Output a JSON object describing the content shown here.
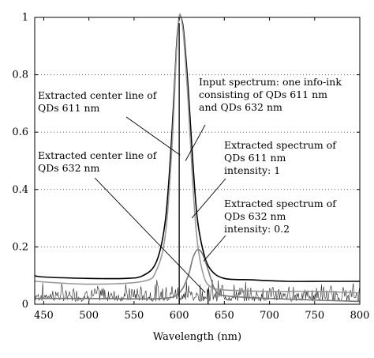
{
  "chart_data": {
    "type": "line",
    "title": "",
    "xlabel": "Wavelength (nm)",
    "ylabel": "",
    "xlim": [
      440,
      800
    ],
    "ylim": [
      0,
      1
    ],
    "grid": "dotted horizontal",
    "x_ticks": [
      "450",
      "500",
      "550",
      "600",
      "650",
      "700",
      "750",
      "800"
    ],
    "y_ticks": [
      "0",
      "0.2",
      "0.4",
      "0.6",
      "0.8",
      "1"
    ],
    "series": [
      {
        "color": "#000000",
        "x": [
          440,
          450,
          500,
          540,
          560,
          575,
          585,
          592,
          597,
          600,
          602,
          605,
          610,
          615,
          620,
          627,
          635,
          650,
          680,
          720,
          760,
          800
        ],
        "values": [
          0.1,
          0.095,
          0.09,
          0.09,
          0.1,
          0.15,
          0.3,
          0.6,
          0.9,
          1.0,
          1.0,
          0.95,
          0.75,
          0.5,
          0.3,
          0.18,
          0.12,
          0.09,
          0.085,
          0.08,
          0.08,
          0.08
        ]
      },
      {
        "color": "#999999",
        "x": [
          440,
          500,
          560,
          575,
          585,
          592,
          597,
          600,
          602,
          605,
          610,
          615,
          620,
          627,
          635,
          650,
          700,
          750,
          800
        ],
        "values": [
          0.08,
          0.07,
          0.08,
          0.12,
          0.25,
          0.55,
          0.88,
          1.0,
          1.0,
          0.93,
          0.7,
          0.42,
          0.22,
          0.1,
          0.06,
          0.05,
          0.045,
          0.045,
          0.04
        ]
      },
      {
        "color": "#777777",
        "x": [
          440,
          500,
          580,
          600,
          610,
          615,
          620,
          625,
          630,
          635,
          640,
          650,
          700,
          800
        ],
        "values": [
          0.02,
          0.02,
          0.02,
          0.04,
          0.1,
          0.16,
          0.19,
          0.18,
          0.14,
          0.09,
          0.05,
          0.03,
          0.02,
          0.01
        ]
      }
    ],
    "center_lines": [
      {
        "x": 600,
        "ylim": [
          0,
          0.98
        ]
      },
      {
        "x": 632,
        "ylim": [
          0,
          0.05
        ]
      }
    ],
    "annotations": [
      {
        "lines": [
          "Extracted center line of",
          "QDs 611 nm"
        ],
        "target": {
          "x": 601,
          "y": 0.52
        }
      },
      {
        "lines": [
          "Input spectrum: one info-ink",
          "consisting of QDs 611 nm",
          "and QDs 632 nm"
        ],
        "target": {
          "x": 607,
          "y": 0.5
        }
      },
      {
        "lines": [
          "Extracted spectrum of",
          "QDs 611 nm",
          "intensity: 1"
        ],
        "target": {
          "x": 614,
          "y": 0.3
        }
      },
      {
        "lines": [
          "Extracted center line of",
          "QDs 632 nm"
        ],
        "target": {
          "x": 629,
          "y": 0.04
        }
      },
      {
        "lines": [
          "Extracted spectrum of",
          "QDs 632 nm",
          "intensity: 0.2"
        ],
        "target": {
          "x": 627,
          "y": 0.15
        }
      }
    ]
  }
}
